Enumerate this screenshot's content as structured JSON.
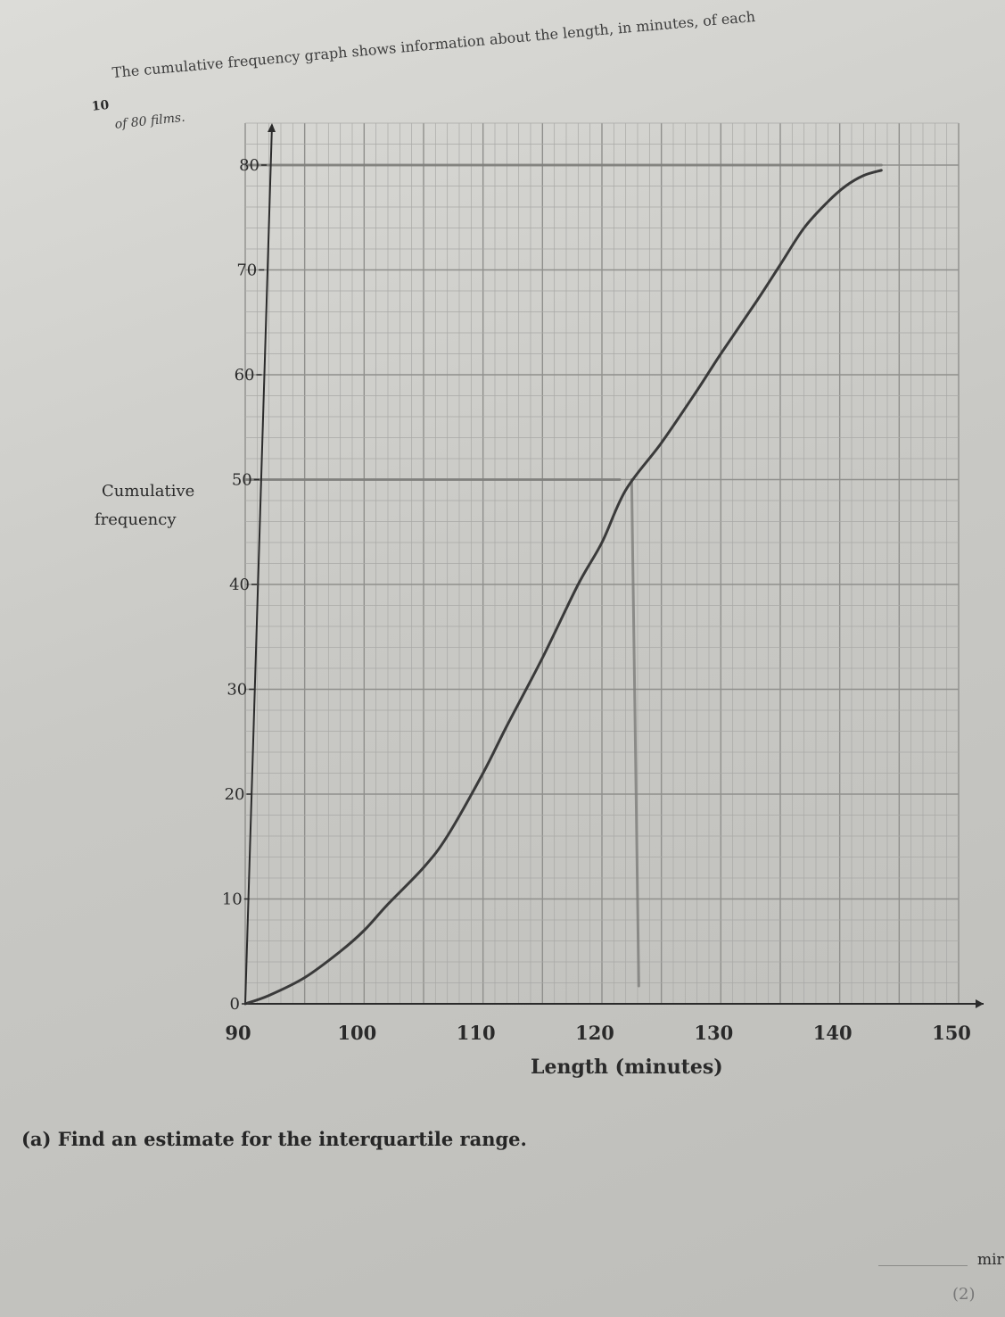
{
  "question": {
    "number": "10",
    "intro": "The cumulative frequency graph shows information about the length, in minutes, of each",
    "intro_line2": "of 80 films.",
    "part_a": "(a) Find an estimate for the interquartile range.",
    "answer_unit": "mir",
    "marks": "(2)"
  },
  "colors": {
    "paper": "#d3d3cf",
    "grid_minor": "#a9a9a6",
    "grid_major": "#8f8f8c",
    "curve": "#3a3a3a",
    "pencil": "#7d7d7a"
  },
  "chart_data": {
    "type": "line",
    "title": "",
    "xlabel": "Length (minutes)",
    "ylabel_line1": "Cumulative",
    "ylabel_line2": "frequency",
    "xlim": [
      90,
      150
    ],
    "ylim": [
      0,
      80
    ],
    "x_ticks": [
      "90",
      "100",
      "110",
      "120",
      "130",
      "140",
      "150"
    ],
    "y_ticks": [
      "0",
      "10",
      "20",
      "30",
      "40",
      "50",
      "60",
      "70",
      "80"
    ],
    "grid": true,
    "series": [
      {
        "x": [
          90,
          92,
          95,
          98,
          100,
          102,
          105,
          107,
          110,
          112,
          115,
          118,
          120,
          122,
          125,
          128,
          130,
          133,
          135,
          137,
          139,
          140.5,
          142,
          143.5
        ],
        "y": [
          0,
          0.8,
          2.5,
          5,
          7,
          9.5,
          13,
          16,
          22,
          26.5,
          33,
          40,
          44,
          49,
          53.5,
          58.5,
          62,
          67,
          70.5,
          74,
          76.5,
          78,
          79,
          79.5
        ]
      }
    ],
    "pencil_marks": [
      {
        "kind": "horizontal",
        "y": 80,
        "x_from": 90,
        "x_to": 143.5
      },
      {
        "kind": "horizontal",
        "y": 50,
        "x_from": 90,
        "x_to": 121.5
      },
      {
        "kind": "vertical",
        "x": 122.5,
        "y_from": 0,
        "y_to": 50
      }
    ]
  }
}
